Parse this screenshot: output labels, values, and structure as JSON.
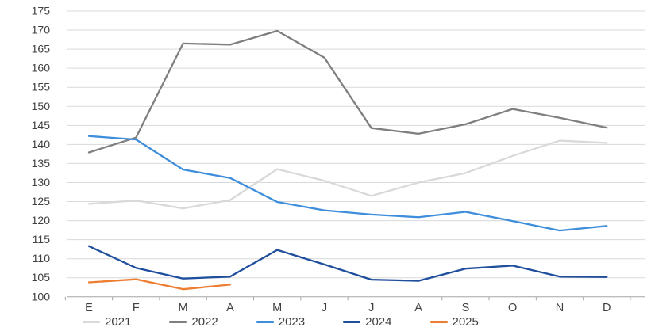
{
  "chart_data": {
    "type": "line",
    "title": "",
    "xlabel": "",
    "ylabel": "",
    "categories": [
      "E",
      "F",
      "M",
      "A",
      "M",
      "J",
      "J",
      "A",
      "S",
      "O",
      "N",
      "D"
    ],
    "y_ticks": [
      100,
      105,
      110,
      115,
      120,
      125,
      130,
      135,
      140,
      145,
      150,
      155,
      160,
      165,
      170,
      175
    ],
    "ylim": [
      100,
      175
    ],
    "grid": "horizontal",
    "legend_position": "bottom",
    "series": [
      {
        "name": "2021",
        "color": "#D9D9D9",
        "values": [
          124.4,
          125.3,
          123.2,
          125.4,
          133.5,
          130.5,
          126.5,
          130.0,
          132.5,
          137.0,
          141.0,
          140.4
        ]
      },
      {
        "name": "2022",
        "color": "#7F7F7F",
        "values": [
          137.9,
          141.8,
          166.5,
          166.2,
          169.8,
          162.8,
          144.3,
          142.8,
          145.3,
          149.3,
          147.0,
          144.4
        ]
      },
      {
        "name": "2023",
        "color": "#3E8EDC",
        "values": [
          142.2,
          141.3,
          133.4,
          131.2,
          124.9,
          122.7,
          121.6,
          120.9,
          122.3,
          119.9,
          117.4,
          118.6
        ]
      },
      {
        "name": "2024",
        "color": "#1F4E9C",
        "values": [
          113.3,
          107.6,
          104.8,
          105.3,
          112.3,
          108.5,
          104.5,
          104.2,
          107.4,
          108.2,
          105.3,
          105.2
        ]
      },
      {
        "name": "2025",
        "color": "#ED7D31",
        "values": [
          103.8,
          104.6,
          102.0,
          103.2
        ]
      }
    ],
    "colors": {
      "grid": "#D9D9D9",
      "axis": "#A6A6A6",
      "labels": "#404040",
      "background": "#FFFFFF"
    }
  }
}
